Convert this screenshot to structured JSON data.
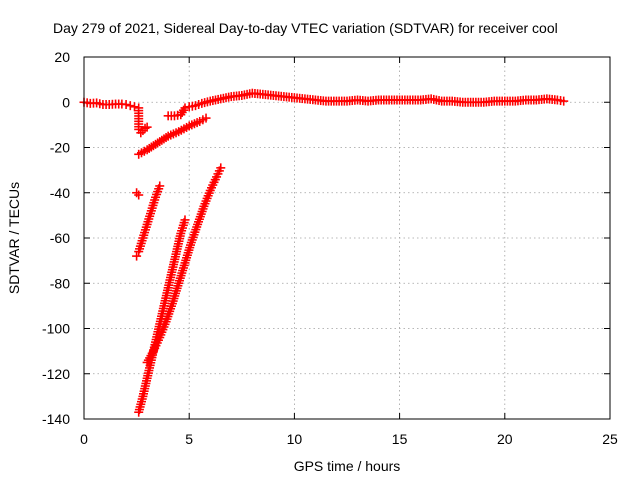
{
  "chart_data": {
    "type": "scatter",
    "title": "Day 279 of 2021, Sidereal Day-to-day VTEC variation (SDTVAR) for receiver cool",
    "xlabel": "GPS time / hours",
    "ylabel": "SDTVAR / TECUs",
    "xlim": [
      0,
      25
    ],
    "ylim": [
      -140,
      20
    ],
    "xticks": [
      "0",
      "5",
      "10",
      "15",
      "20",
      "25"
    ],
    "yticks": [
      "20",
      "0",
      "-20",
      "-40",
      "-60",
      "-80",
      "-100",
      "-120",
      "-140"
    ],
    "grid": true,
    "marker": "plus",
    "color": "#ff0000",
    "series": [
      {
        "points": [
          [
            0.0,
            0.0
          ],
          [
            0.3,
            -0.5
          ],
          [
            0.6,
            -0.3
          ],
          [
            0.9,
            -1.0
          ],
          [
            1.2,
            -1.0
          ],
          [
            1.5,
            -0.8
          ],
          [
            1.8,
            -0.8
          ],
          [
            2.0,
            -1.0
          ],
          [
            2.2,
            -1.5
          ],
          [
            2.4,
            -2.0
          ],
          [
            2.6,
            -2.5
          ],
          [
            2.6,
            -12.0
          ],
          [
            2.7,
            -13.5
          ],
          [
            2.9,
            -11.5
          ],
          [
            3.0,
            -11.0
          ],
          [
            2.5,
            -40.0
          ],
          [
            2.6,
            -41.0
          ],
          [
            2.6,
            -23.0
          ],
          [
            3.0,
            -21.0
          ],
          [
            3.5,
            -18.0
          ],
          [
            4.0,
            -15.0
          ],
          [
            4.5,
            -13.0
          ],
          [
            5.0,
            -10.5
          ],
          [
            5.5,
            -8.5
          ],
          [
            5.8,
            -7.0
          ],
          [
            4.0,
            -6.0
          ],
          [
            4.3,
            -6.0
          ],
          [
            4.6,
            -5.5
          ],
          [
            4.8,
            -2.5
          ],
          [
            5.0,
            -2.0
          ],
          [
            5.3,
            -1.5
          ],
          [
            5.6,
            -0.5
          ],
          [
            6.0,
            0.5
          ],
          [
            6.5,
            1.5
          ],
          [
            7.0,
            2.5
          ],
          [
            7.5,
            3.0
          ],
          [
            8.0,
            4.0
          ],
          [
            8.5,
            3.5
          ],
          [
            9.0,
            3.0
          ],
          [
            9.5,
            2.5
          ],
          [
            10.0,
            2.0
          ],
          [
            10.5,
            1.5
          ],
          [
            11.0,
            1.0
          ],
          [
            11.5,
            0.5
          ],
          [
            12.0,
            0.5
          ],
          [
            12.5,
            0.5
          ],
          [
            13.0,
            1.0
          ],
          [
            13.5,
            0.5
          ],
          [
            14.0,
            1.0
          ],
          [
            14.5,
            1.0
          ],
          [
            15.0,
            1.0
          ],
          [
            15.5,
            1.0
          ],
          [
            16.0,
            1.0
          ],
          [
            16.5,
            1.5
          ],
          [
            17.0,
            0.5
          ],
          [
            17.5,
            0.5
          ],
          [
            18.0,
            0.0
          ],
          [
            18.5,
            0.0
          ],
          [
            19.0,
            0.0
          ],
          [
            19.5,
            0.5
          ],
          [
            20.0,
            0.5
          ],
          [
            20.5,
            0.5
          ],
          [
            21.0,
            1.0
          ],
          [
            21.5,
            1.0
          ],
          [
            22.0,
            1.5
          ],
          [
            22.5,
            1.0
          ],
          [
            22.8,
            0.5
          ],
          [
            2.5,
            -68.0
          ],
          [
            2.6,
            -66.0
          ],
          [
            2.8,
            -60.0
          ],
          [
            3.0,
            -54.0
          ],
          [
            3.2,
            -48.0
          ],
          [
            3.4,
            -42.0
          ],
          [
            3.6,
            -37.0
          ],
          [
            2.6,
            -137.0
          ],
          [
            2.8,
            -130.0
          ],
          [
            3.0,
            -122.0
          ],
          [
            3.2,
            -114.0
          ],
          [
            3.4,
            -106.0
          ],
          [
            3.6,
            -98.0
          ],
          [
            3.8,
            -90.0
          ],
          [
            4.0,
            -82.0
          ],
          [
            4.2,
            -74.0
          ],
          [
            4.4,
            -66.0
          ],
          [
            4.6,
            -58.0
          ],
          [
            4.8,
            -52.0
          ],
          [
            3.0,
            -115.0
          ],
          [
            3.3,
            -110.0
          ],
          [
            3.6,
            -104.0
          ],
          [
            3.9,
            -97.0
          ],
          [
            4.2,
            -89.0
          ],
          [
            4.5,
            -80.0
          ],
          [
            4.8,
            -71.0
          ],
          [
            5.1,
            -62.0
          ],
          [
            5.4,
            -54.0
          ],
          [
            5.7,
            -46.0
          ],
          [
            6.0,
            -39.0
          ],
          [
            6.3,
            -33.0
          ],
          [
            6.5,
            -29.0
          ]
        ]
      }
    ]
  }
}
